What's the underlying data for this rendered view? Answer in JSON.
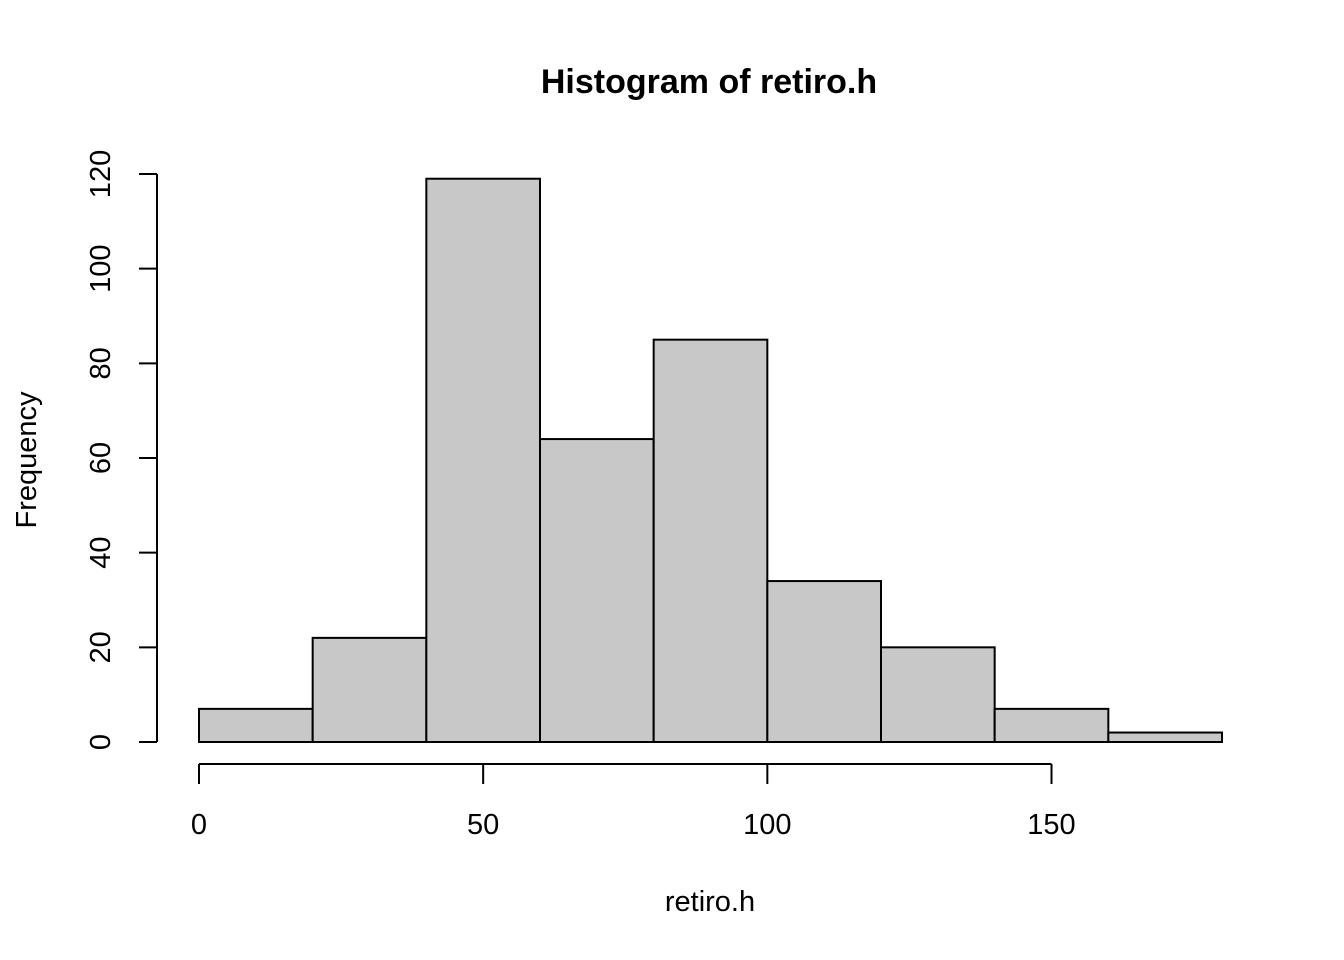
{
  "chart_data": {
    "type": "bar",
    "title": "Histogram of retiro.h",
    "xlabel": "retiro.h",
    "ylabel": "Frequency",
    "bins": [
      {
        "start": 0,
        "end": 20,
        "count": 7
      },
      {
        "start": 20,
        "end": 40,
        "count": 22
      },
      {
        "start": 40,
        "end": 60,
        "count": 119
      },
      {
        "start": 60,
        "end": 80,
        "count": 64
      },
      {
        "start": 80,
        "end": 100,
        "count": 85
      },
      {
        "start": 100,
        "end": 120,
        "count": 34
      },
      {
        "start": 120,
        "end": 140,
        "count": 20
      },
      {
        "start": 140,
        "end": 160,
        "count": 7
      },
      {
        "start": 160,
        "end": 180,
        "count": 2
      }
    ],
    "x_ticks": [
      0,
      50,
      100,
      150
    ],
    "y_ticks": [
      0,
      20,
      40,
      60,
      80,
      100,
      120
    ],
    "xlim": [
      0,
      180
    ],
    "ylim": [
      0,
      120
    ],
    "grid": false,
    "colors": {
      "bar_fill": "#c8c8c8",
      "bar_stroke": "#000000"
    }
  }
}
